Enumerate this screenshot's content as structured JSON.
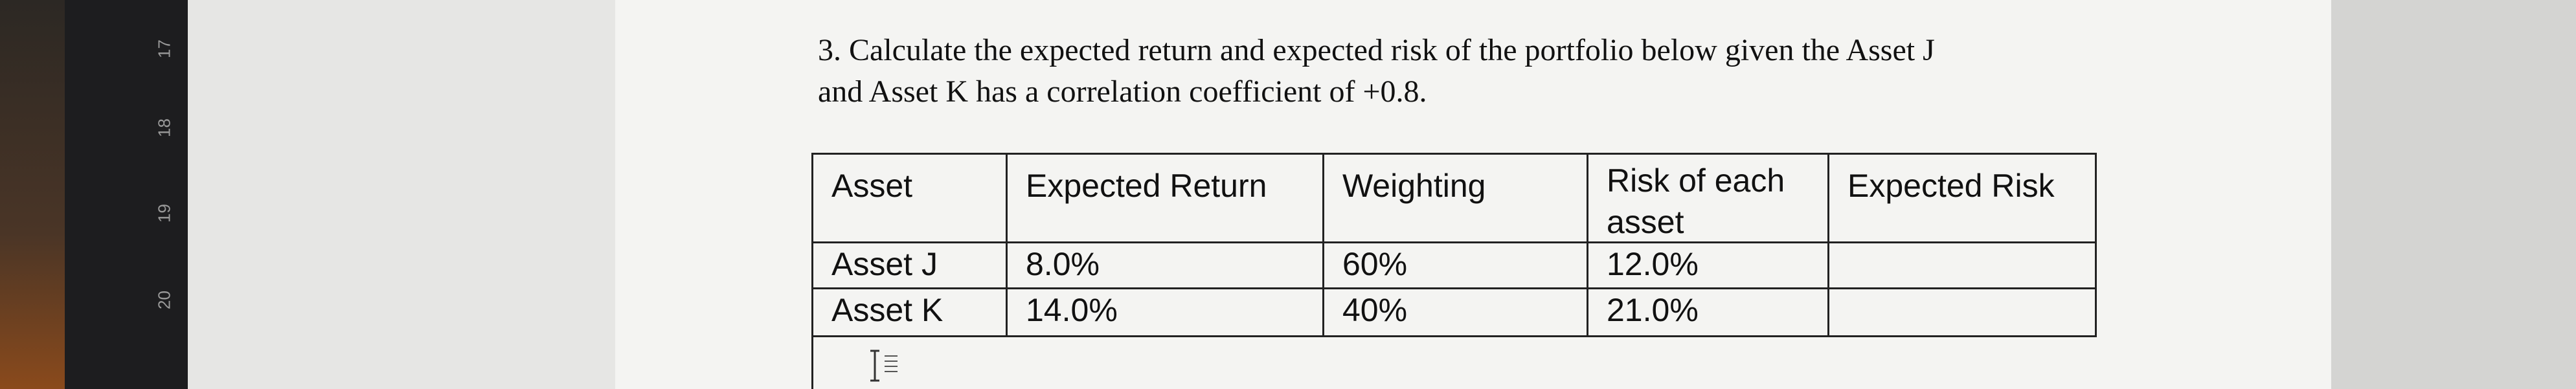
{
  "ruler": {
    "labels": [
      "17",
      "18",
      "19",
      "20"
    ]
  },
  "question": {
    "lines": [
      "3. Calculate the expected return and expected risk of the portfolio below given the Asset J",
      "and Asset K has a correlation coefficient of +0.8."
    ]
  },
  "table": {
    "header": [
      "Asset",
      "Expected Return",
      "Weighting",
      "Risk of each asset",
      "Expected Risk"
    ],
    "rows": [
      [
        "Asset J",
        "8.0%",
        "60%",
        "12.0%"
      ],
      [
        "Asset K",
        "14.0%",
        "40%",
        "21.0%"
      ]
    ]
  }
}
